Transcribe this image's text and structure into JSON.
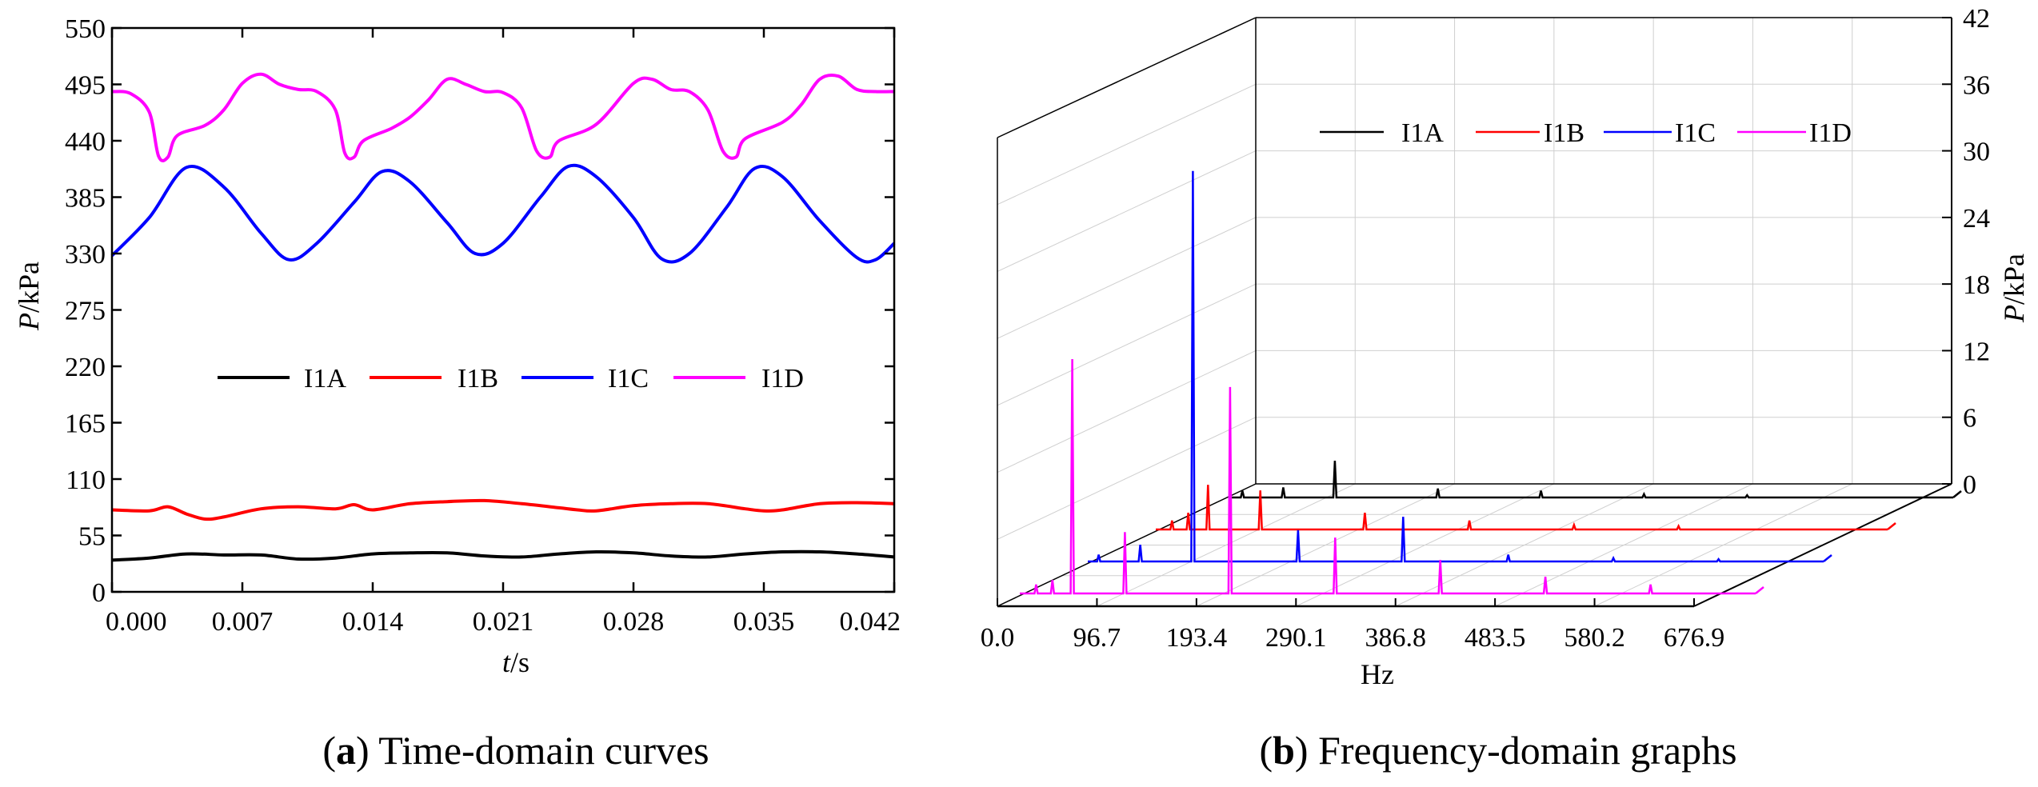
{
  "chart_data": [
    {
      "type": "line",
      "panel_label": "a",
      "caption": "Time-domain curves",
      "xlabel_var": "t",
      "xlabel_unit": "/s",
      "ylabel_var": "P",
      "ylabel_unit": "/kPa",
      "xlim": [
        0,
        0.042
      ],
      "ylim": [
        0,
        550
      ],
      "x_ticks": [
        "0.000",
        "0.007",
        "0.014",
        "0.021",
        "0.028",
        "0.035",
        "0.042"
      ],
      "y_ticks": [
        "0",
        "55",
        "110",
        "165",
        "220",
        "275",
        "330",
        "385",
        "440",
        "495",
        "550"
      ],
      "legend": [
        "I1A",
        "I1B",
        "I1C",
        "I1D"
      ],
      "series": [
        {
          "name": "I1A",
          "color": "#000000",
          "points": [
            [
              0.0,
              31
            ],
            [
              0.002,
              33
            ],
            [
              0.004,
              37
            ],
            [
              0.006,
              36
            ],
            [
              0.008,
              36
            ],
            [
              0.01,
              32
            ],
            [
              0.012,
              33
            ],
            [
              0.014,
              37
            ],
            [
              0.016,
              38
            ],
            [
              0.018,
              38
            ],
            [
              0.02,
              35
            ],
            [
              0.022,
              34
            ],
            [
              0.024,
              37
            ],
            [
              0.026,
              39
            ],
            [
              0.028,
              38
            ],
            [
              0.03,
              35
            ],
            [
              0.032,
              34
            ],
            [
              0.034,
              37
            ],
            [
              0.036,
              39
            ],
            [
              0.038,
              39
            ],
            [
              0.04,
              37
            ],
            [
              0.042,
              34
            ]
          ]
        },
        {
          "name": "I1B",
          "color": "#ff0000",
          "points": [
            [
              0.0,
              80
            ],
            [
              0.002,
              79
            ],
            [
              0.003,
              83
            ],
            [
              0.004,
              76
            ],
            [
              0.005,
              71
            ],
            [
              0.006,
              73
            ],
            [
              0.008,
              81
            ],
            [
              0.01,
              83
            ],
            [
              0.012,
              81
            ],
            [
              0.013,
              85
            ],
            [
              0.014,
              80
            ],
            [
              0.016,
              86
            ],
            [
              0.018,
              88
            ],
            [
              0.02,
              89
            ],
            [
              0.022,
              86
            ],
            [
              0.024,
              82
            ],
            [
              0.025,
              80
            ],
            [
              0.026,
              79
            ],
            [
              0.028,
              84
            ],
            [
              0.03,
              86
            ],
            [
              0.032,
              86
            ],
            [
              0.034,
              81
            ],
            [
              0.035,
              79
            ],
            [
              0.036,
              80
            ],
            [
              0.038,
              86
            ],
            [
              0.04,
              87
            ],
            [
              0.042,
              86
            ]
          ]
        },
        {
          "name": "I1C",
          "color": "#0000ff",
          "points": [
            [
              0.0,
              328
            ],
            [
              0.002,
              365
            ],
            [
              0.004,
              414
            ],
            [
              0.006,
              395
            ],
            [
              0.008,
              350
            ],
            [
              0.0095,
              324
            ],
            [
              0.011,
              340
            ],
            [
              0.013,
              380
            ],
            [
              0.0145,
              410
            ],
            [
              0.016,
              400
            ],
            [
              0.018,
              360
            ],
            [
              0.0195,
              330
            ],
            [
              0.021,
              340
            ],
            [
              0.023,
              385
            ],
            [
              0.0245,
              415
            ],
            [
              0.026,
              405
            ],
            [
              0.028,
              365
            ],
            [
              0.0295,
              325
            ],
            [
              0.031,
              330
            ],
            [
              0.033,
              375
            ],
            [
              0.0345,
              413
            ],
            [
              0.036,
              405
            ],
            [
              0.038,
              362
            ],
            [
              0.04,
              326
            ],
            [
              0.041,
              324
            ],
            [
              0.042,
              340
            ]
          ]
        },
        {
          "name": "I1D",
          "color": "#ff00ff",
          "points": [
            [
              0.0,
              488
            ],
            [
              0.001,
              486
            ],
            [
              0.002,
              468
            ],
            [
              0.0025,
              425
            ],
            [
              0.003,
              424
            ],
            [
              0.0035,
              445
            ],
            [
              0.005,
              455
            ],
            [
              0.006,
              470
            ],
            [
              0.007,
              496
            ],
            [
              0.008,
              505
            ],
            [
              0.009,
              495
            ],
            [
              0.01,
              490
            ],
            [
              0.011,
              488
            ],
            [
              0.012,
              470
            ],
            [
              0.0125,
              428
            ],
            [
              0.013,
              424
            ],
            [
              0.0135,
              440
            ],
            [
              0.015,
              452
            ],
            [
              0.016,
              463
            ],
            [
              0.017,
              480
            ],
            [
              0.018,
              500
            ],
            [
              0.019,
              495
            ],
            [
              0.02,
              488
            ],
            [
              0.021,
              487
            ],
            [
              0.022,
              472
            ],
            [
              0.0228,
              430
            ],
            [
              0.0235,
              424
            ],
            [
              0.024,
              440
            ],
            [
              0.026,
              456
            ],
            [
              0.028,
              496
            ],
            [
              0.029,
              500
            ],
            [
              0.03,
              490
            ],
            [
              0.031,
              488
            ],
            [
              0.032,
              470
            ],
            [
              0.0328,
              430
            ],
            [
              0.0335,
              424
            ],
            [
              0.034,
              442
            ],
            [
              0.036,
              458
            ],
            [
              0.037,
              475
            ],
            [
              0.038,
              500
            ],
            [
              0.039,
              503
            ],
            [
              0.04,
              490
            ],
            [
              0.041,
              488
            ],
            [
              0.042,
              488
            ]
          ]
        }
      ]
    },
    {
      "type": "line",
      "panel_label": "b",
      "caption": "Frequency-domain graphs",
      "xlabel": "Hz",
      "ylabel_var": "P",
      "ylabel_unit": "/kPa",
      "xlim": [
        0,
        676.9
      ],
      "zlim": [
        0,
        42
      ],
      "x_ticks": [
        "0.0",
        "96.7",
        "193.4",
        "290.1",
        "386.8",
        "483.5",
        "580.2",
        "676.9"
      ],
      "z_ticks": [
        "0",
        "6",
        "12",
        "18",
        "24",
        "30",
        "36",
        "42"
      ],
      "legend": [
        "I1A",
        "I1B",
        "I1C",
        "I1D"
      ],
      "series": [
        {
          "name": "I1A",
          "color": "#000000",
          "peaks": [
            [
              10,
              0.6
            ],
            [
              48.3,
              0.9
            ],
            [
              96.7,
              3.3
            ],
            [
              193.4,
              0.8
            ],
            [
              290.1,
              0.6
            ],
            [
              386.8,
              0.3
            ],
            [
              483.5,
              0.2
            ]
          ]
        },
        {
          "name": "I1B",
          "color": "#ff0000",
          "peaks": [
            [
              15,
              0.8
            ],
            [
              30,
              1.5
            ],
            [
              48.3,
              4.0
            ],
            [
              96.7,
              3.5
            ],
            [
              193.4,
              1.5
            ],
            [
              290.1,
              0.8
            ],
            [
              386.8,
              0.4
            ],
            [
              483.5,
              0.3
            ]
          ]
        },
        {
          "name": "I1C",
          "color": "#0000ff",
          "peaks": [
            [
              10,
              0.6
            ],
            [
              48.3,
              1.5
            ],
            [
              96.7,
              35
            ],
            [
              193.4,
              2.8
            ],
            [
              290.1,
              4.0
            ],
            [
              386.8,
              0.6
            ],
            [
              483.5,
              0.3
            ],
            [
              580.2,
              0.2
            ]
          ]
        },
        {
          "name": "I1D",
          "color": "#ff00ff",
          "peaks": [
            [
              15,
              0.8
            ],
            [
              30,
              1.2
            ],
            [
              48.3,
              21
            ],
            [
              96.7,
              5.5
            ],
            [
              193.4,
              18.5
            ],
            [
              290.1,
              5.0
            ],
            [
              386.8,
              3.0
            ],
            [
              483.5,
              1.5
            ],
            [
              580.2,
              0.8
            ]
          ]
        }
      ]
    }
  ]
}
